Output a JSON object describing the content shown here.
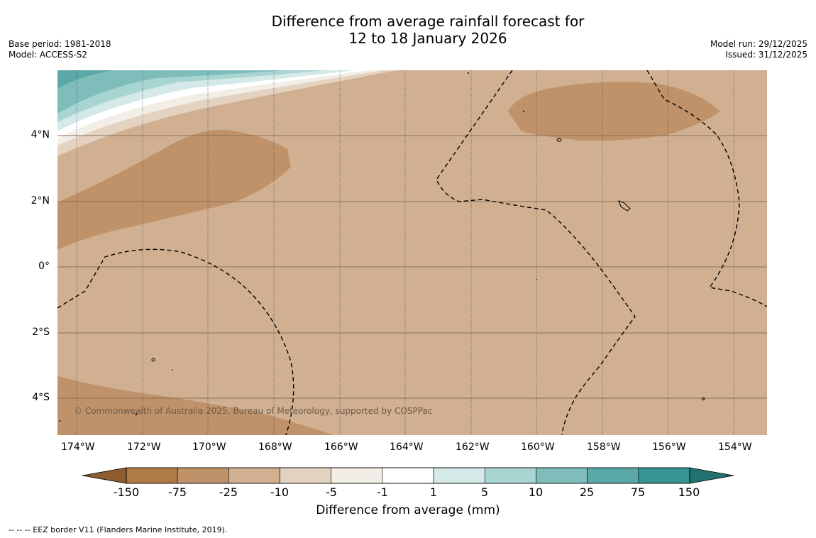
{
  "title": {
    "line1": "Difference from average rainfall forecast for",
    "line2": "12 to 18 January 2026"
  },
  "meta": {
    "base_period": "Base period: 1981-2018",
    "model": "Model: ACCESS-S2",
    "model_run": "Model run: 29/12/2025",
    "issued": "Issued: 31/12/2025"
  },
  "map": {
    "longitude_labels": [
      "174°W",
      "172°W",
      "170°W",
      "168°W",
      "166°W",
      "164°W",
      "162°W",
      "160°W",
      "158°W",
      "156°W",
      "154°W"
    ],
    "latitude_labels": [
      "4°N",
      "2°N",
      "0°",
      "2°S",
      "4°S"
    ],
    "copyright": "© Commonwealth of Australia 2025, Bureau of Meteorology, supported by COSPPac"
  },
  "colorbar": {
    "title": "Difference from average (mm)",
    "tick_labels": [
      "-150",
      "-75",
      "-25",
      "-10",
      "-5",
      "-1",
      "1",
      "5",
      "10",
      "25",
      "75",
      "150"
    ],
    "colors": [
      "#8f5d2d",
      "#b07a44",
      "#c09269",
      "#d0b091",
      "#e4d2c0",
      "#f2ede6",
      "#ffffff",
      "#d4e9e8",
      "#a8d5d2",
      "#7fbdbb",
      "#5aa8a7",
      "#359593",
      "#23716f"
    ]
  },
  "legend": {
    "eez": "--  --  -- EEZ border V11 (Flanders Marine Institute, 2019)."
  }
}
